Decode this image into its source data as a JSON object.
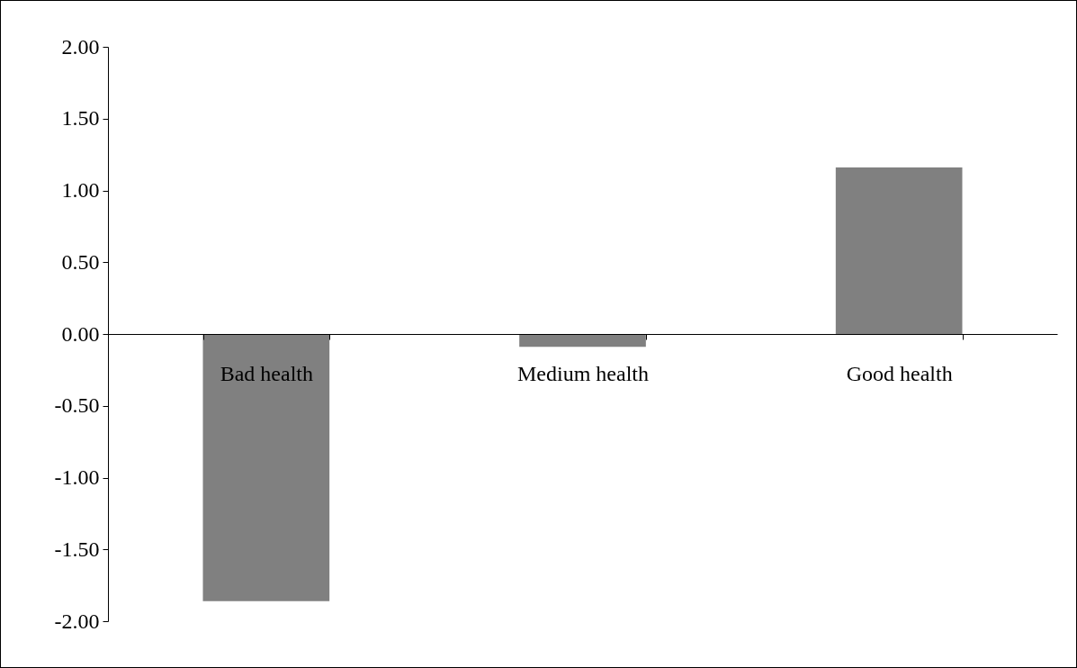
{
  "chart_data": {
    "type": "bar",
    "categories": [
      "Bad health",
      "Medium health",
      "Good health"
    ],
    "values": [
      -1.86,
      -0.09,
      1.16
    ],
    "color": "#808080",
    "ylim": [
      -2,
      2
    ],
    "yticks": [
      {
        "value": -2,
        "label": "-2.00"
      },
      {
        "value": -1.5,
        "label": "-1.50"
      },
      {
        "value": -1,
        "label": "-1.00"
      },
      {
        "value": -0.5,
        "label": "-0.50"
      },
      {
        "value": 0,
        "label": "0.00"
      },
      {
        "value": 0.5,
        "label": "0.50"
      },
      {
        "value": 1,
        "label": "1.00"
      },
      {
        "value": 1.5,
        "label": "1.50"
      },
      {
        "value": 2,
        "label": "2.00"
      }
    ],
    "grid": false
  }
}
